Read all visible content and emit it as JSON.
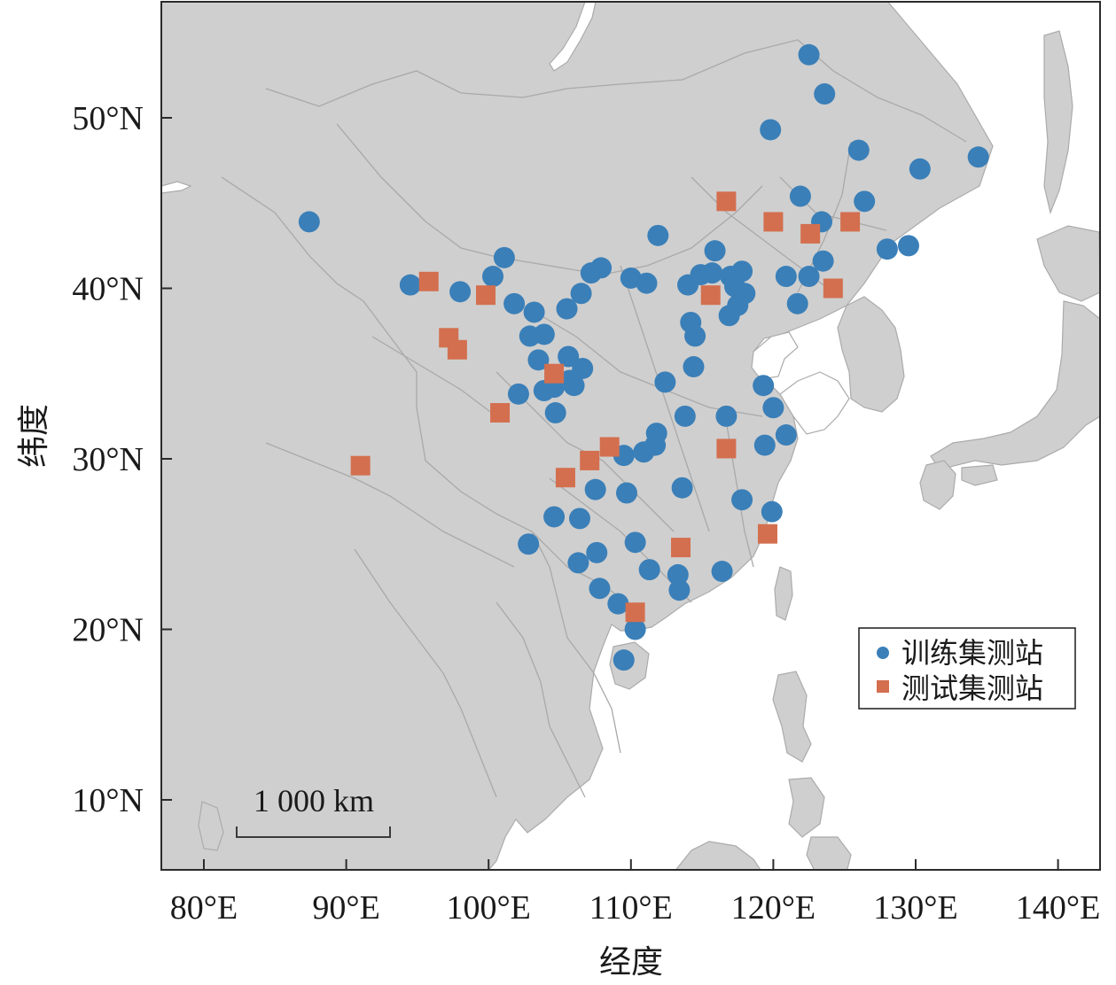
{
  "axes": {
    "xlabel": "经度",
    "ylabel": "纬度",
    "x_ticks": [
      {
        "value": 80,
        "label": "80°E"
      },
      {
        "value": 90,
        "label": "90°E"
      },
      {
        "value": 100,
        "label": "100°E"
      },
      {
        "value": 110,
        "label": "110°E"
      },
      {
        "value": 120,
        "label": "120°E"
      },
      {
        "value": 130,
        "label": "130°E"
      },
      {
        "value": 140,
        "label": "140°E"
      }
    ],
    "y_ticks": [
      {
        "value": 10,
        "label": "10°N"
      },
      {
        "value": 20,
        "label": "20°N"
      },
      {
        "value": 30,
        "label": "30°N"
      },
      {
        "value": 40,
        "label": "40°N"
      },
      {
        "value": 50,
        "label": "50°N"
      }
    ],
    "xlim": [
      77,
      143
    ],
    "ylim": [
      5.3,
      55.9
    ]
  },
  "legend": {
    "position": "bottom-right",
    "train_label": "训练集测站",
    "test_label": "测试集测站"
  },
  "scale_bar": {
    "label": "1 000 km"
  },
  "colors": {
    "train": "#3a7fb8",
    "test": "#d36f4f",
    "land": "#cfcfcf",
    "water": "#ffffff",
    "border": "#a9a9a9"
  },
  "chart_data": {
    "type": "scatter",
    "series": [
      {
        "name": "训练集测站",
        "marker": "circle",
        "points": [
          [
            122.5,
            53.7
          ],
          [
            123.6,
            51.4
          ],
          [
            119.8,
            49.3
          ],
          [
            126.0,
            48.1
          ],
          [
            130.3,
            47.0
          ],
          [
            134.4,
            47.7
          ],
          [
            121.9,
            45.4
          ],
          [
            126.4,
            45.1
          ],
          [
            123.4,
            43.9
          ],
          [
            128.0,
            42.3
          ],
          [
            129.5,
            42.5
          ],
          [
            123.5,
            41.6
          ],
          [
            122.5,
            40.7
          ],
          [
            120.9,
            40.7
          ],
          [
            121.7,
            39.1
          ],
          [
            111.9,
            43.1
          ],
          [
            115.9,
            42.2
          ],
          [
            115.7,
            40.9
          ],
          [
            114.9,
            40.8
          ],
          [
            117.0,
            40.7
          ],
          [
            117.8,
            41.0
          ],
          [
            117.3,
            40.1
          ],
          [
            118.0,
            39.7
          ],
          [
            114.0,
            40.2
          ],
          [
            117.5,
            39.0
          ],
          [
            116.9,
            38.4
          ],
          [
            114.2,
            38.0
          ],
          [
            114.5,
            37.2
          ],
          [
            114.4,
            35.4
          ],
          [
            112.4,
            34.5
          ],
          [
            110.0,
            40.6
          ],
          [
            111.1,
            40.3
          ],
          [
            107.9,
            41.2
          ],
          [
            107.2,
            40.9
          ],
          [
            106.5,
            39.7
          ],
          [
            105.5,
            38.8
          ],
          [
            101.1,
            41.8
          ],
          [
            100.3,
            40.7
          ],
          [
            98.0,
            39.8
          ],
          [
            94.5,
            40.2
          ],
          [
            87.4,
            43.9
          ],
          [
            101.8,
            39.1
          ],
          [
            103.2,
            38.6
          ],
          [
            103.9,
            37.3
          ],
          [
            102.9,
            37.2
          ],
          [
            105.6,
            36.0
          ],
          [
            103.5,
            35.8
          ],
          [
            105.7,
            34.6
          ],
          [
            106.6,
            35.3
          ],
          [
            106.0,
            34.3
          ],
          [
            104.6,
            34.2
          ],
          [
            103.9,
            34.0
          ],
          [
            102.1,
            33.8
          ],
          [
            104.7,
            32.7
          ],
          [
            113.8,
            32.5
          ],
          [
            116.7,
            32.5
          ],
          [
            119.3,
            34.3
          ],
          [
            120.0,
            33.0
          ],
          [
            111.8,
            31.5
          ],
          [
            111.7,
            30.8
          ],
          [
            110.9,
            30.4
          ],
          [
            109.5,
            30.2
          ],
          [
            107.5,
            28.2
          ],
          [
            109.7,
            28.0
          ],
          [
            113.6,
            28.3
          ],
          [
            119.4,
            30.8
          ],
          [
            120.9,
            31.4
          ],
          [
            117.8,
            27.6
          ],
          [
            119.9,
            26.9
          ],
          [
            104.6,
            26.6
          ],
          [
            106.4,
            26.5
          ],
          [
            102.8,
            25.0
          ],
          [
            107.6,
            24.5
          ],
          [
            106.3,
            23.9
          ],
          [
            110.3,
            25.1
          ],
          [
            111.3,
            23.5
          ],
          [
            113.3,
            23.2
          ],
          [
            113.4,
            22.3
          ],
          [
            116.4,
            23.4
          ],
          [
            107.8,
            22.4
          ],
          [
            109.1,
            21.5
          ],
          [
            110.3,
            20.0
          ],
          [
            109.5,
            18.2
          ]
        ]
      },
      {
        "name": "测试集测站",
        "marker": "square",
        "points": [
          [
            116.7,
            45.1
          ],
          [
            120.0,
            43.9
          ],
          [
            122.6,
            43.2
          ],
          [
            125.4,
            43.9
          ],
          [
            124.2,
            40.0
          ],
          [
            115.6,
            39.6
          ],
          [
            95.8,
            40.4
          ],
          [
            99.8,
            39.6
          ],
          [
            97.2,
            37.1
          ],
          [
            97.8,
            36.4
          ],
          [
            104.6,
            35.0
          ],
          [
            100.8,
            32.7
          ],
          [
            108.5,
            30.7
          ],
          [
            107.1,
            29.9
          ],
          [
            105.4,
            28.9
          ],
          [
            116.7,
            30.6
          ],
          [
            119.6,
            25.6
          ],
          [
            113.5,
            24.8
          ],
          [
            110.3,
            21.0
          ],
          [
            91.0,
            29.6
          ]
        ]
      }
    ]
  }
}
